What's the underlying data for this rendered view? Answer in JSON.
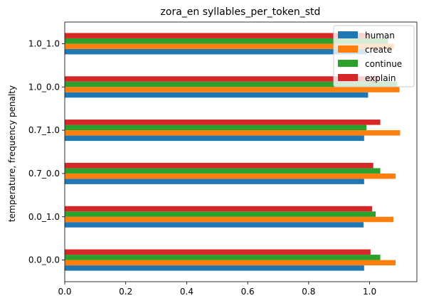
{
  "chart_data": {
    "type": "bar",
    "orientation": "horizontal",
    "title": "zora_en syllables_per_token_std",
    "xlabel": "",
    "ylabel": "temperature, frequency penalty",
    "categories": [
      "0.0_0.0",
      "0.0_1.0",
      "0.7_0.0",
      "0.7_1.0",
      "1.0_0.0",
      "1.0_1.0"
    ],
    "xlim": [
      0,
      1.155
    ],
    "xticks": [
      0.0,
      0.2,
      0.4,
      0.6,
      0.8,
      1.0
    ],
    "xtick_labels": [
      "0.0",
      "0.2",
      "0.4",
      "0.6",
      "0.8",
      "1.0"
    ],
    "grid": false,
    "legend_position": "top-right",
    "series": [
      {
        "name": "human",
        "color": "#1f77b4",
        "values": [
          0.982,
          0.98,
          0.982,
          0.982,
          0.995,
          0.99
        ]
      },
      {
        "name": "create",
        "color": "#ff7f0e",
        "values": [
          1.085,
          1.078,
          1.085,
          1.1,
          1.098,
          1.08
        ]
      },
      {
        "name": "continue",
        "color": "#2ca02c",
        "values": [
          1.035,
          1.02,
          1.035,
          0.99,
          1.09,
          1.06
        ]
      },
      {
        "name": "explain",
        "color": "#d62728",
        "values": [
          1.003,
          1.008,
          1.012,
          1.035,
          1.03,
          1.0
        ]
      }
    ]
  }
}
